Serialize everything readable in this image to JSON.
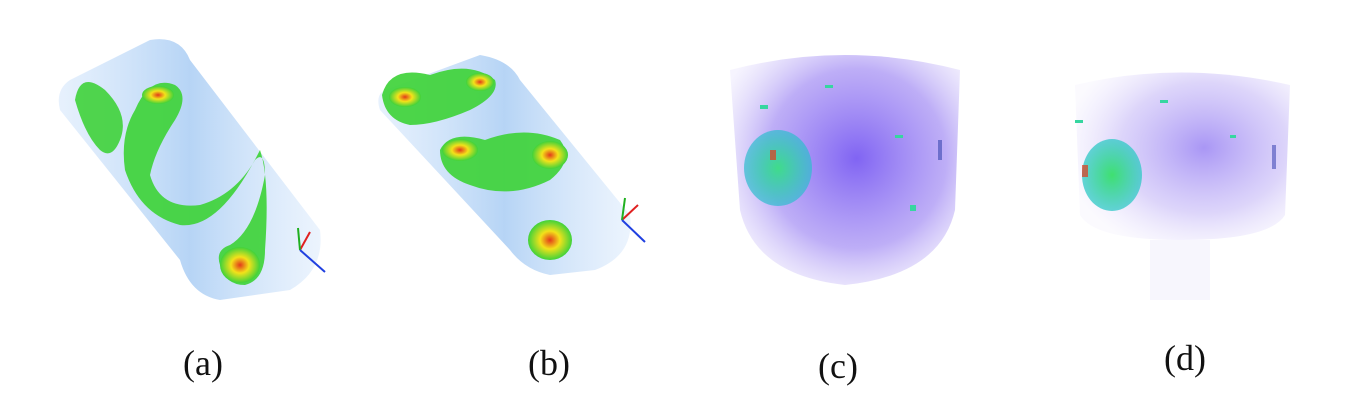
{
  "figure": {
    "panels": [
      {
        "id": "a",
        "caption": "(a)"
      },
      {
        "id": "b",
        "caption": "(b)"
      },
      {
        "id": "c",
        "caption": "(c)"
      },
      {
        "id": "d",
        "caption": "(d)"
      }
    ],
    "colors": {
      "volume_blue": "#9ec6f2",
      "isosurface_green": "#3fd23a",
      "hotspot_red": "#e23a1a",
      "hotspot_yellow": "#f3e21a",
      "volume_violet": "#8a6cf0",
      "blob_teal": "#36d6a0",
      "axis_red": "#e02020",
      "axis_green": "#20b020",
      "axis_blue": "#2040e0"
    }
  }
}
